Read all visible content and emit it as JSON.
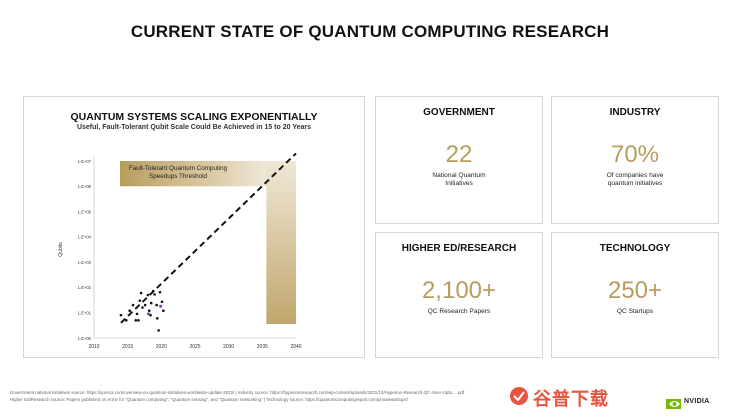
{
  "page": {
    "title": "CURRENT STATE OF QUANTUM COMPUTING RESEARCH"
  },
  "chart_data": {
    "type": "scatter",
    "title": "QUANTUM SYSTEMS SCALING EXPONENTIALLY",
    "subtitle": "Useful, Fault-Tolerant Qubit Scale Could Be Achieved in 15 to 20 Years",
    "xlabel": "",
    "ylabel": "Qubits",
    "x_ticks": [
      "2010",
      "2015",
      "2020",
      "2025",
      "2030",
      "2035",
      "2040"
    ],
    "y_ticks": [
      "1.E+00",
      "1.E+01",
      "1.E+02",
      "1.E+03",
      "1.E+04",
      "1.E+05",
      "1.E+06",
      "1.E+07"
    ],
    "xlim": [
      2010,
      2040
    ],
    "ylim_log10": [
      0,
      7
    ],
    "annotation": "Fault-Tolerant Quantum Computing\nSpeedups Threshold",
    "threshold_band_log10": [
      6,
      7
    ],
    "threshold_year_band": [
      2035,
      2040
    ],
    "trend_line": {
      "x": [
        2014,
        2040
      ],
      "y_log10": [
        0.6,
        7.3
      ]
    },
    "points": [
      {
        "x": 2014,
        "y": 8
      },
      {
        "x": 2014.8,
        "y": 5
      },
      {
        "x": 2015.3,
        "y": 12
      },
      {
        "x": 2015.8,
        "y": 20
      },
      {
        "x": 2016.2,
        "y": 5
      },
      {
        "x": 2016.4,
        "y": 9
      },
      {
        "x": 2016.8,
        "y": 30
      },
      {
        "x": 2017,
        "y": 60
      },
      {
        "x": 2017.2,
        "y": 16
      },
      {
        "x": 2017.6,
        "y": 20
      },
      {
        "x": 2018,
        "y": 50
      },
      {
        "x": 2018.2,
        "y": 12
      },
      {
        "x": 2018.5,
        "y": 24
      },
      {
        "x": 2018.8,
        "y": 72
      },
      {
        "x": 2019,
        "y": 53
      },
      {
        "x": 2019.3,
        "y": 20
      },
      {
        "x": 2019.6,
        "y": 2
      },
      {
        "x": 2019.8,
        "y": 65
      },
      {
        "x": 2020.1,
        "y": 27
      },
      {
        "x": 2020.3,
        "y": 12
      },
      {
        "x": 2019.4,
        "y": 6
      },
      {
        "x": 2016.6,
        "y": 5
      },
      {
        "x": 2018.4,
        "y": 8
      }
    ],
    "highlight_points": [
      {
        "x": 2019.9,
        "y": 18
      },
      {
        "x": 2018.1,
        "y": 9
      }
    ],
    "colors": {
      "points": "#111111",
      "highlight": "#7a3fa0",
      "band": "#b89c5c",
      "trend": "#111111"
    }
  },
  "stats": {
    "government": {
      "heading": "GOVERNMENT",
      "value": "22",
      "caption": "National Quantum\nInitiatives"
    },
    "industry": {
      "heading": "INDUSTRY",
      "value": "70%",
      "caption": "Of companies have\nquantum initiatives"
    },
    "higher_ed": {
      "heading": "HIGHER ED/RESEARCH",
      "value": "2,100+",
      "caption": "QC Research Papers"
    },
    "technology": {
      "heading": "TECHNOLOGY",
      "value": "250+",
      "caption": "QC Startups"
    }
  },
  "footnotes": {
    "line1": "Government national initiatives source: https://qureca.com/overview-on-quantum-initiatives-worldwide-update-2022/  |  Industry source: https://hyperionresearch.com/wp-content/uploads/2021/12/Hyperion-Research-QC-User-Upta... .pdf",
    "line2": "Higher Ed/Research source:  Papers published on ArXiv for \"Quantum computing\", \"Quantum sensing\", and \"Quantum networking\"  |  Technology source: https://quantumcomputingreport.com/privatestartups/"
  },
  "branding": {
    "watermark": "谷普下载",
    "logo_text": "NVIDIA"
  },
  "accent_color": "#b89c5c"
}
